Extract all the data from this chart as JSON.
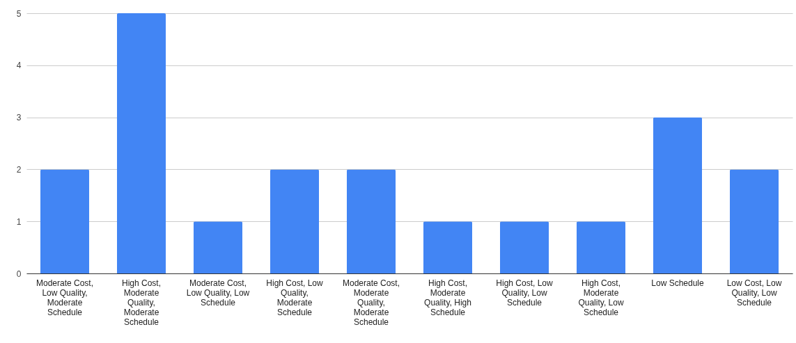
{
  "chart_data": {
    "type": "bar",
    "categories": [
      "Moderate Cost, Low Quality, Moderate Schedule",
      "High Cost, Moderate Quality, Moderate Schedule",
      "Moderate Cost, Low Quality, Low Schedule",
      "High Cost, Low Quality, Moderate Schedule",
      "Moderate Cost, Moderate Quality, Moderate Schedule",
      "High Cost, Moderate Quality, High Schedule",
      "High Cost, Low Quality, Low Schedule",
      "High Cost, Moderate Quality, Low Schedule",
      "Low Schedule",
      "Low Cost, Low Quality, Low Schedule"
    ],
    "values": [
      2,
      5,
      1,
      2,
      2,
      1,
      1,
      1,
      3,
      2
    ],
    "color": "#4285f4",
    "ylim": [
      0,
      5
    ],
    "yticks": [
      0,
      1,
      2,
      3,
      4,
      5
    ],
    "grid": "y"
  }
}
